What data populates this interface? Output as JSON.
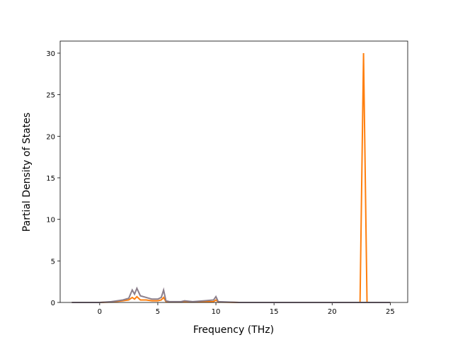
{
  "chart_data": {
    "type": "line",
    "xlabel": "Frequency (THz)",
    "ylabel": "Partial Density of States",
    "x": [
      -2.4,
      0,
      1,
      2,
      2.5,
      2.8,
      3.0,
      3.2,
      3.5,
      4.0,
      4.5,
      5.0,
      5.3,
      5.5,
      5.7,
      6.0,
      7.0,
      7.3,
      8.0,
      9.0,
      9.8,
      10.0,
      10.2,
      12,
      15,
      20,
      22.4,
      22.7,
      23.0,
      25
    ],
    "series": [
      {
        "color": "#ff7f0e",
        "values": [
          0,
          0,
          0.05,
          0.2,
          0.3,
          0.6,
          0.4,
          0.7,
          0.3,
          0.3,
          0.2,
          0.2,
          0.3,
          0.6,
          0.1,
          0.05,
          0.05,
          0.1,
          0.05,
          0.1,
          0.1,
          0.3,
          0.05,
          0,
          0,
          0,
          0,
          30,
          0,
          0
        ]
      },
      {
        "color": "#8c7f8c",
        "values": [
          0,
          0,
          0.1,
          0.3,
          0.5,
          1.5,
          1.0,
          1.7,
          0.8,
          0.6,
          0.4,
          0.4,
          0.6,
          1.5,
          0.2,
          0.1,
          0.1,
          0.2,
          0.1,
          0.2,
          0.3,
          0.7,
          0.1,
          0,
          0,
          0,
          0,
          0,
          0,
          0
        ]
      }
    ],
    "xlim": [
      -3.4,
      26.5
    ],
    "ylim": [
      0,
      31.45
    ],
    "xticks": [
      0,
      5,
      10,
      15,
      20,
      25
    ],
    "yticks": [
      0,
      5,
      10,
      15,
      20,
      25,
      30
    ]
  }
}
